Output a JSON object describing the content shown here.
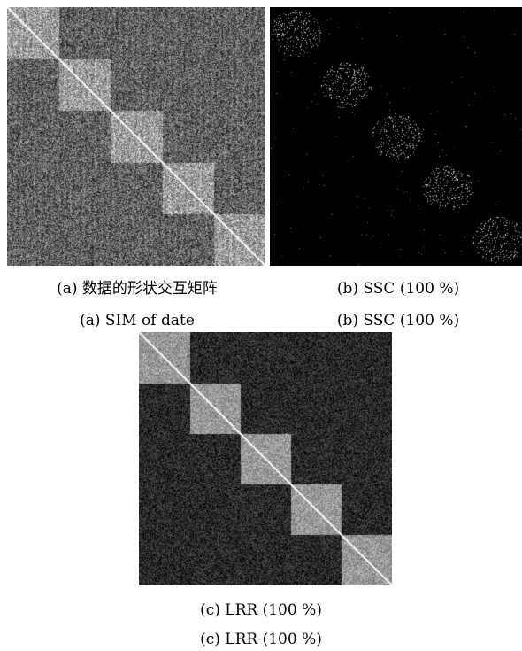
{
  "figure": {
    "panels": [
      {
        "id": "a",
        "caption_cn": "(a) 数据的形状交互矩阵",
        "caption_en": "(a) SIM of date",
        "blocks": 5,
        "background_level": 0.38,
        "block_level": 0.62,
        "diagonal_level": 0.95
      },
      {
        "id": "b",
        "caption_cn": "(b) SSC (100 %)",
        "caption_en": "(b) SSC (100 %)",
        "blocks": 5,
        "background_level": 0.0,
        "block_level": 0.1,
        "diagonal_level": 0.0
      },
      {
        "id": "c",
        "caption_cn": "(c) LRR (100 %)",
        "caption_en": "(c) LRR (100 %)",
        "blocks": 5,
        "background_level": 0.16,
        "block_level": 0.6,
        "diagonal_level": 0.95
      }
    ]
  }
}
